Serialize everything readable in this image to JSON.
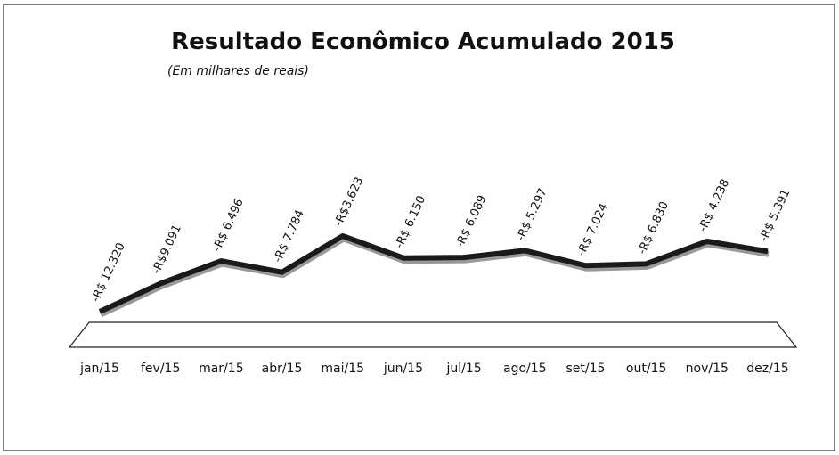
{
  "chart_data": {
    "type": "line",
    "title": "Resultado Econômico Acumulado 2015",
    "subtitle": "(Em milhares de reais)",
    "categories": [
      "jan/15",
      "fev/15",
      "mar/15",
      "abr/15",
      "mai/15",
      "jun/15",
      "jul/15",
      "ago/15",
      "set/15",
      "out/15",
      "nov/15",
      "dez/15"
    ],
    "series": [
      {
        "name": "Resultado Econômico Acumulado",
        "color": "#1a1a1a",
        "values": [
          -12320,
          -9091,
          -6496,
          -7784,
          -3623,
          -6150,
          -6089,
          -5297,
          -7024,
          -6830,
          -4238,
          -5391
        ],
        "value_labels": [
          "-R$ 12.320",
          "-R$9.091",
          "-R$ 6.496",
          "-R$ 7.784",
          "-R$3.623",
          "-R$ 6.150",
          "-R$ 6.089",
          "-R$ 5.297",
          "-R$ 7.024",
          "-R$ 6.830",
          "-R$ 4.238",
          "-R$ 5.391"
        ]
      }
    ]
  }
}
